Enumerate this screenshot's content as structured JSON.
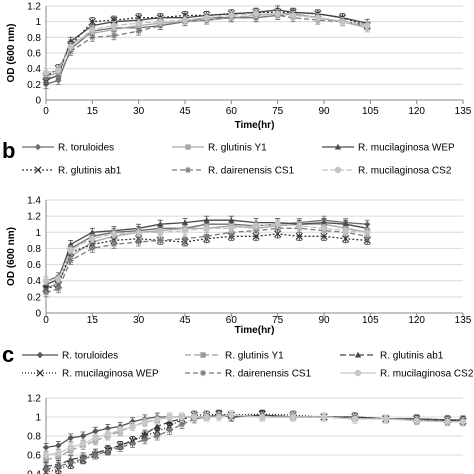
{
  "chart_data": [
    {
      "type": "line",
      "panel": "",
      "xlabel": "Time(hr)",
      "ylabel": "OD (600 nm)",
      "xlim": [
        0,
        135
      ],
      "ylim": [
        0,
        1.2
      ],
      "xticks": [
        0,
        15,
        30,
        45,
        60,
        75,
        90,
        105,
        120,
        135
      ],
      "yticks": [
        0,
        0.2,
        0.4,
        0.6,
        0.8,
        1,
        1.2
      ],
      "legend": [],
      "series": [
        {
          "x": [
            0,
            4,
            8,
            15,
            22,
            30,
            37,
            45,
            52,
            60,
            68,
            75,
            80,
            88,
            96,
            104
          ],
          "values": [
            0.2,
            0.25,
            0.65,
            0.88,
            0.92,
            0.92,
            0.95,
            1.0,
            1.05,
            1.05,
            1.05,
            1.08,
            1.1,
            1.05,
            1.0,
            0.95
          ],
          "color": "#6e6e6e",
          "dash": "",
          "marker": "diamond"
        },
        {
          "x": [
            0,
            4,
            8,
            15,
            22,
            30,
            37,
            45,
            52,
            60,
            68,
            75,
            80,
            88,
            96,
            104
          ],
          "values": [
            0.3,
            0.35,
            0.72,
            0.85,
            0.9,
            0.95,
            0.98,
            1.0,
            1.02,
            1.05,
            1.08,
            1.1,
            1.1,
            1.05,
            1.0,
            0.92
          ],
          "color": "#a8a8a8",
          "dash": "",
          "marker": "square"
        },
        {
          "x": [
            0,
            4,
            8,
            15,
            22,
            30,
            37,
            45,
            52,
            60,
            68,
            75,
            80,
            88,
            96,
            104
          ],
          "values": [
            0.25,
            0.32,
            0.75,
            0.95,
            1.0,
            1.02,
            1.05,
            1.05,
            1.08,
            1.1,
            1.12,
            1.15,
            1.12,
            1.1,
            1.05,
            0.98
          ],
          "color": "#4a4a4a",
          "dash": "",
          "marker": "triangle"
        },
        {
          "x": [
            0,
            4,
            8,
            15,
            22,
            30,
            37,
            45,
            52,
            60,
            68,
            75,
            80,
            88,
            96,
            104
          ],
          "values": [
            0.3,
            0.4,
            0.7,
            1.0,
            1.02,
            1.05,
            1.05,
            1.08,
            1.08,
            1.1,
            1.12,
            1.12,
            1.12,
            1.1,
            1.05,
            0.95
          ],
          "color": "#333333",
          "dash": "2,2",
          "marker": "x"
        },
        {
          "x": [
            0,
            4,
            8,
            15,
            22,
            30,
            37,
            45,
            52,
            60,
            68,
            75,
            80,
            88,
            96,
            104
          ],
          "values": [
            0.28,
            0.3,
            0.62,
            0.8,
            0.82,
            0.88,
            0.95,
            1.0,
            1.02,
            1.05,
            1.05,
            1.08,
            1.05,
            1.02,
            1.0,
            0.95
          ],
          "color": "#7a7a7a",
          "dash": "5,3",
          "marker": "star"
        },
        {
          "x": [
            0,
            4,
            8,
            15,
            22,
            30,
            37,
            45,
            52,
            60,
            68,
            75,
            80,
            88,
            96,
            104
          ],
          "values": [
            0.35,
            0.38,
            0.68,
            0.9,
            0.95,
            0.98,
            1.0,
            1.02,
            1.05,
            1.08,
            1.1,
            1.1,
            1.08,
            1.05,
            1.0,
            0.95
          ],
          "color": "#c4c4c4",
          "dash": "6,2",
          "marker": "circle"
        }
      ]
    },
    {
      "type": "line",
      "panel": "b",
      "xlabel": "Time(hr)",
      "ylabel": "OD (600 nm)",
      "xlim": [
        0,
        135
      ],
      "ylim": [
        0,
        1.4
      ],
      "xticks": [
        0,
        15,
        30,
        45,
        60,
        75,
        90,
        105,
        120,
        135
      ],
      "yticks": [
        0,
        0.2,
        0.4,
        0.6,
        0.8,
        1,
        1.2,
        1.4
      ],
      "legend": [
        "R. toruloides",
        "R. glutinis Y1",
        "R. mucilaginosa WEP",
        "R. glutinis ab1",
        "R. dairenensis CS1",
        "R. mucilaginosa  CS2"
      ],
      "series": [
        {
          "name": "R. toruloides",
          "x": [
            0,
            4,
            8,
            15,
            22,
            30,
            37,
            45,
            52,
            60,
            68,
            75,
            82,
            90,
            97,
            104
          ],
          "values": [
            0.4,
            0.45,
            0.8,
            0.95,
            1.0,
            1.02,
            1.05,
            1.05,
            1.1,
            1.1,
            1.08,
            1.1,
            1.12,
            1.15,
            1.12,
            1.1
          ],
          "color": "#6e6e6e",
          "dash": "",
          "marker": "diamond"
        },
        {
          "name": "R. glutinis Y1",
          "x": [
            0,
            4,
            8,
            15,
            22,
            30,
            37,
            45,
            52,
            60,
            68,
            75,
            82,
            90,
            97,
            104
          ],
          "values": [
            0.3,
            0.38,
            0.7,
            0.88,
            0.95,
            1.0,
            1.02,
            1.05,
            1.05,
            1.08,
            1.05,
            1.08,
            1.1,
            1.1,
            1.05,
            1.0
          ],
          "color": "#a8a8a8",
          "dash": "",
          "marker": "square"
        },
        {
          "name": "R. mucilaginosa WEP",
          "x": [
            0,
            4,
            8,
            15,
            22,
            30,
            37,
            45,
            52,
            60,
            68,
            75,
            82,
            90,
            97,
            104
          ],
          "values": [
            0.35,
            0.42,
            0.85,
            1.0,
            1.02,
            1.05,
            1.1,
            1.12,
            1.15,
            1.15,
            1.12,
            1.12,
            1.1,
            1.12,
            1.1,
            1.05
          ],
          "color": "#4a4a4a",
          "dash": "",
          "marker": "triangle"
        },
        {
          "name": "R. glutinis ab1",
          "x": [
            0,
            4,
            8,
            15,
            22,
            30,
            37,
            45,
            52,
            60,
            68,
            75,
            82,
            90,
            97,
            104
          ],
          "values": [
            0.3,
            0.35,
            0.75,
            0.85,
            0.9,
            0.92,
            0.9,
            0.88,
            0.92,
            0.95,
            0.95,
            0.98,
            0.95,
            0.95,
            0.92,
            0.9
          ],
          "color": "#333333",
          "dash": "2,2",
          "marker": "x"
        },
        {
          "name": "R. dairenensis CS1",
          "x": [
            0,
            4,
            8,
            15,
            22,
            30,
            37,
            45,
            52,
            60,
            68,
            75,
            82,
            90,
            97,
            104
          ],
          "values": [
            0.25,
            0.3,
            0.65,
            0.8,
            0.85,
            0.88,
            0.9,
            0.92,
            0.95,
            1.0,
            1.02,
            1.05,
            1.05,
            1.02,
            1.0,
            0.95
          ],
          "color": "#7a7a7a",
          "dash": "5,3",
          "marker": "star"
        },
        {
          "name": "R. mucilaginosa  CS2",
          "x": [
            0,
            4,
            8,
            15,
            22,
            30,
            37,
            45,
            52,
            60,
            68,
            75,
            82,
            90,
            97,
            104
          ],
          "values": [
            0.4,
            0.42,
            0.78,
            0.92,
            0.98,
            1.0,
            1.0,
            1.02,
            1.05,
            1.05,
            1.08,
            1.1,
            1.08,
            1.05,
            1.02,
            1.0
          ],
          "color": "#c4c4c4",
          "dash": "6,2",
          "marker": "circle"
        }
      ]
    },
    {
      "type": "line",
      "panel": "c",
      "xlabel": "",
      "ylabel": "",
      "xlim": [
        0,
        135
      ],
      "ylim": [
        0.4,
        1.2
      ],
      "xticks": [],
      "yticks": [
        0.4,
        0.6,
        0.8,
        1,
        1.2
      ],
      "legend": [
        "R. toruloides",
        "R. glutinis Y1",
        "R. glutinis ab1",
        "R. mucilaginosa WEP",
        "R. dairenensis CS1",
        "R. mucilaginosa CS2"
      ],
      "series": [
        {
          "name": "R. toruloides",
          "x": [
            0,
            4,
            8,
            12,
            16,
            20,
            24,
            28,
            32,
            36,
            40,
            44,
            48,
            52,
            56,
            60,
            70,
            80,
            90,
            100,
            110,
            120,
            130,
            135
          ],
          "values": [
            0.68,
            0.7,
            0.78,
            0.8,
            0.85,
            0.88,
            0.9,
            0.95,
            0.98,
            1.0,
            1.0,
            1.0,
            1.0,
            1.0,
            1.02,
            1.0,
            1.02,
            1.0,
            1.0,
            1.0,
            0.98,
            0.98,
            0.97,
            0.97
          ],
          "color": "#555555",
          "dash": "",
          "marker": "diamond"
        },
        {
          "name": "R. glutinis Y1",
          "x": [
            0,
            4,
            8,
            12,
            16,
            20,
            24,
            28,
            32,
            36,
            40,
            44,
            48,
            52,
            56,
            60,
            70,
            80,
            90,
            100,
            110,
            120,
            130,
            135
          ],
          "values": [
            0.55,
            0.58,
            0.65,
            0.7,
            0.75,
            0.8,
            0.85,
            0.9,
            0.95,
            0.97,
            1.0,
            1.0,
            1.0,
            1.0,
            1.02,
            1.02,
            1.0,
            1.0,
            1.0,
            0.98,
            0.98,
            0.97,
            0.96,
            0.95
          ],
          "color": "#9a9a9a",
          "dash": "6,3",
          "marker": "square"
        },
        {
          "name": "R. glutinis ab1",
          "x": [
            0,
            4,
            8,
            12,
            16,
            20,
            24,
            28,
            32,
            36,
            40,
            44,
            48,
            52,
            56,
            60,
            70,
            80,
            90,
            100,
            110,
            120,
            130,
            135
          ],
          "values": [
            0.48,
            0.5,
            0.55,
            0.58,
            0.62,
            0.66,
            0.7,
            0.75,
            0.82,
            0.9,
            0.95,
            0.98,
            1.0,
            1.0,
            1.02,
            1.0,
            1.02,
            1.0,
            1.0,
            1.0,
            0.98,
            0.98,
            0.96,
            0.96
          ],
          "color": "#444444",
          "dash": "6,3",
          "marker": "triangle"
        },
        {
          "name": "R. mucilaginosa WEP",
          "x": [
            0,
            4,
            8,
            12,
            16,
            20,
            24,
            28,
            32,
            36,
            40,
            44,
            48,
            52,
            56,
            60,
            70,
            80,
            90,
            100,
            110,
            120,
            130,
            135
          ],
          "values": [
            0.42,
            0.45,
            0.5,
            0.55,
            0.6,
            0.65,
            0.7,
            0.75,
            0.8,
            0.85,
            0.9,
            0.98,
            1.02,
            1.02,
            1.03,
            1.02,
            1.03,
            1.02,
            1.0,
            1.0,
            0.98,
            0.98,
            0.97,
            0.96
          ],
          "color": "#222222",
          "dash": "1,2",
          "marker": "x"
        },
        {
          "name": "R. dairenensis CS1",
          "x": [
            0,
            4,
            8,
            12,
            16,
            20,
            24,
            28,
            32,
            36,
            40,
            44,
            48,
            52,
            56,
            60,
            70,
            80,
            90,
            100,
            110,
            120,
            130,
            135
          ],
          "values": [
            0.45,
            0.48,
            0.52,
            0.56,
            0.6,
            0.64,
            0.68,
            0.72,
            0.76,
            0.8,
            0.86,
            0.92,
            0.98,
            1.0,
            1.02,
            1.02,
            1.0,
            1.0,
            1.0,
            0.98,
            0.98,
            0.97,
            0.96,
            0.95
          ],
          "color": "#777777",
          "dash": "5,3",
          "marker": "star"
        },
        {
          "name": "R. mucilaginosa CS2",
          "x": [
            0,
            4,
            8,
            12,
            16,
            20,
            24,
            28,
            32,
            36,
            40,
            44,
            48,
            52,
            56,
            60,
            70,
            80,
            90,
            100,
            110,
            120,
            130,
            135
          ],
          "values": [
            0.6,
            0.62,
            0.68,
            0.72,
            0.78,
            0.82,
            0.86,
            0.9,
            0.94,
            0.97,
            1.0,
            1.0,
            1.0,
            1.0,
            1.0,
            1.02,
            1.0,
            1.0,
            1.0,
            0.98,
            0.98,
            0.96,
            0.95,
            0.95
          ],
          "color": "#c8c8c8",
          "dash": "",
          "marker": "circle"
        }
      ]
    }
  ]
}
